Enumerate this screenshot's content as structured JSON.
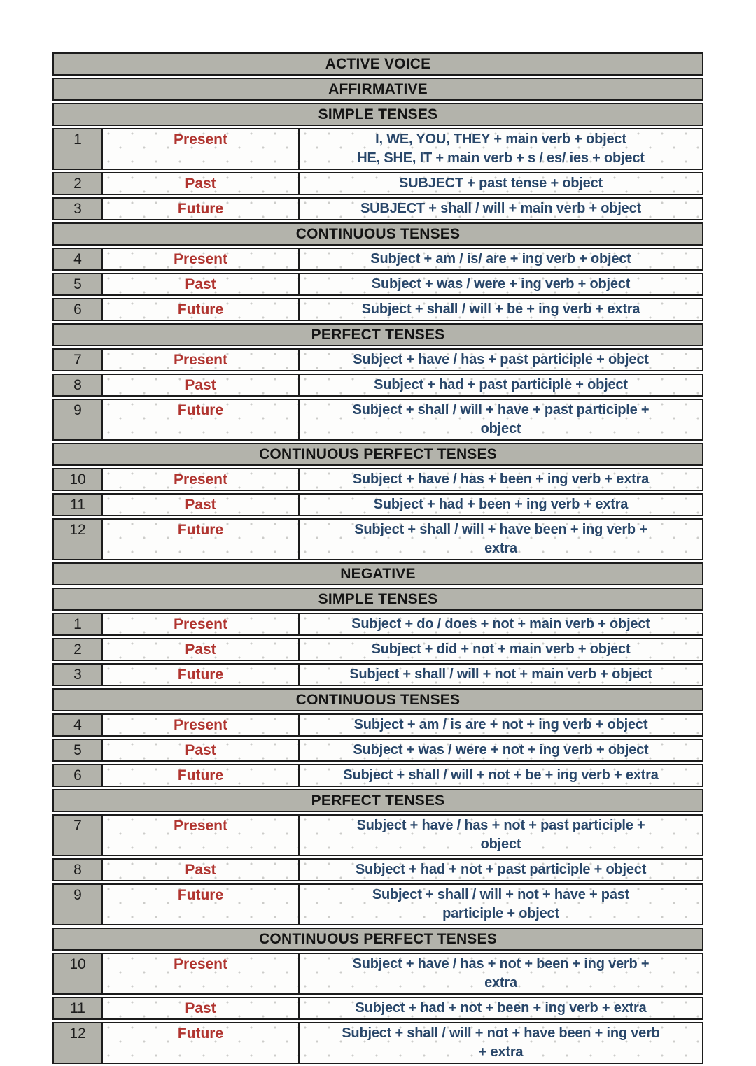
{
  "colors": {
    "header_background": "#b3b3ab",
    "header_text": "#141414",
    "tense_label_red": "#b0342f",
    "formula_navy": "#29476a",
    "border_black": "#1c1c1c",
    "cell_dot_gray": "#cdcdca"
  },
  "table": {
    "main_header": "ACTIVE VOICE",
    "sections": [
      {
        "header": "AFFIRMATIVE",
        "groups": [
          {
            "header": "SIMPLE TENSES",
            "rows": [
              {
                "num": "1",
                "tense": "Present",
                "formula": [
                  "I, WE, YOU, THEY + main verb + object",
                  "HE, SHE, IT + main verb + s / es/ ies + object"
                ]
              },
              {
                "num": "2",
                "tense": "Past",
                "formula": [
                  "SUBJECT + past tense + object"
                ]
              },
              {
                "num": "3",
                "tense": "Future",
                "formula": [
                  "SUBJECT + shall / will + main verb + object"
                ]
              }
            ]
          },
          {
            "header": "CONTINUOUS TENSES",
            "rows": [
              {
                "num": "4",
                "tense": "Present",
                "formula": [
                  "Subject + am / is/ are + ing verb + object"
                ]
              },
              {
                "num": "5",
                "tense": "Past",
                "formula": [
                  "Subject + was / were + ing verb + object"
                ]
              },
              {
                "num": "6",
                "tense": "Future",
                "formula": [
                  "Subject + shall / will + be + ing verb + extra"
                ]
              }
            ]
          },
          {
            "header": "PERFECT TENSES",
            "rows": [
              {
                "num": "7",
                "tense": "Present",
                "formula": [
                  "Subject + have / has + past participle + object"
                ]
              },
              {
                "num": "8",
                "tense": "Past",
                "formula": [
                  "Subject + had + past participle + object"
                ]
              },
              {
                "num": "9",
                "tense": "Future",
                "formula": [
                  "Subject + shall / will + have + past participle +",
                  "object"
                ]
              }
            ]
          },
          {
            "header": "CONTINUOUS PERFECT TENSES",
            "rows": [
              {
                "num": "10",
                "tense": "Present",
                "formula": [
                  "Subject + have / has + been + ing verb + extra"
                ]
              },
              {
                "num": "11",
                "tense": "Past",
                "formula": [
                  "Subject + had + been + ing verb + extra"
                ]
              },
              {
                "num": "12",
                "tense": "Future",
                "formula": [
                  "Subject + shall / will + have been + ing verb +",
                  "extra"
                ]
              }
            ]
          }
        ]
      },
      {
        "header": "NEGATIVE",
        "groups": [
          {
            "header": "SIMPLE TENSES",
            "rows": [
              {
                "num": "1",
                "tense": "Present",
                "formula": [
                  "Subject + do / does + not + main verb + object"
                ]
              },
              {
                "num": "2",
                "tense": "Past",
                "formula": [
                  "Subject + did + not + main verb + object"
                ]
              },
              {
                "num": "3",
                "tense": "Future",
                "formula": [
                  "Subject + shall / will + not + main verb + object"
                ]
              }
            ]
          },
          {
            "header": "CONTINUOUS TENSES",
            "rows": [
              {
                "num": "4",
                "tense": "Present",
                "formula": [
                  "Subject + am / is are + not + ing verb + object"
                ]
              },
              {
                "num": "5",
                "tense": "Past",
                "formula": [
                  "Subject + was / were + not + ing verb + object"
                ]
              },
              {
                "num": "6",
                "tense": "Future",
                "formula": [
                  "Subject + shall / will + not + be + ing verb + extra"
                ]
              }
            ]
          },
          {
            "header": "PERFECT TENSES",
            "rows": [
              {
                "num": "7",
                "tense": "Present",
                "formula": [
                  "Subject + have / has + not + past participle +",
                  "object"
                ]
              },
              {
                "num": "8",
                "tense": "Past",
                "formula": [
                  "Subject + had + not + past participle + object"
                ]
              },
              {
                "num": "9",
                "tense": "Future",
                "formula": [
                  "Subject + shall / will + not + have + past",
                  "participle + object"
                ]
              }
            ]
          },
          {
            "header": "CONTINUOUS PERFECT TENSES",
            "rows": [
              {
                "num": "10",
                "tense": "Present",
                "formula": [
                  "Subject + have / has + not + been + ing verb +",
                  "extra"
                ]
              },
              {
                "num": "11",
                "tense": "Past",
                "formula": [
                  "Subject + had + not + been + ing verb + extra"
                ]
              },
              {
                "num": "12",
                "tense": "Future",
                "formula": [
                  "Subject + shall / will + not + have been + ing verb",
                  "+ extra"
                ]
              }
            ]
          }
        ]
      }
    ]
  }
}
